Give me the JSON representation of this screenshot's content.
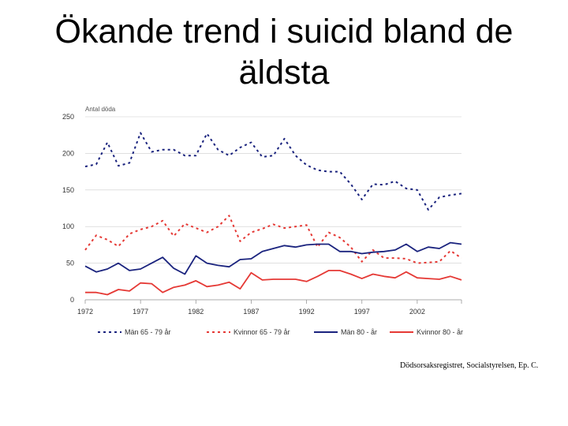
{
  "slide": {
    "title": "Ökande trend i suicid bland de äldsta",
    "source": "Dödsorsaksregistret, Socialstyrelsen, Ep. C."
  },
  "chart_data": {
    "type": "line",
    "ylabel": "Antal döda",
    "ylim": [
      0,
      250
    ],
    "yticks": [
      0,
      50,
      100,
      150,
      200,
      250
    ],
    "xlim": [
      1972,
      2006
    ],
    "xticks": [
      1972,
      1977,
      1982,
      1987,
      1992,
      1997,
      2002
    ],
    "legend_position": "bottom",
    "grid": true,
    "series": [
      {
        "name": "Män 65 - 79 år",
        "color": "#1a237e",
        "style": "dotted",
        "x": [
          1972,
          1973,
          1974,
          1975,
          1976,
          1977,
          1978,
          1979,
          1980,
          1981,
          1982,
          1983,
          1984,
          1985,
          1986,
          1987,
          1988,
          1989,
          1990,
          1991,
          1992,
          1993,
          1994,
          1995,
          1996,
          1997,
          1998,
          1999,
          2000,
          2001,
          2002,
          2003,
          2004,
          2005,
          2006
        ],
        "values": [
          182,
          185,
          215,
          183,
          187,
          228,
          202,
          205,
          205,
          197,
          197,
          227,
          205,
          197,
          208,
          215,
          195,
          197,
          220,
          197,
          184,
          177,
          175,
          175,
          158,
          137,
          158,
          157,
          162,
          152,
          150,
          123,
          140,
          143,
          145
        ]
      },
      {
        "name": "Kvinnor 65 - 79 år",
        "color": "#e53935",
        "style": "dotted",
        "x": [
          1972,
          1973,
          1974,
          1975,
          1976,
          1977,
          1978,
          1979,
          1980,
          1981,
          1982,
          1983,
          1984,
          1985,
          1986,
          1987,
          1988,
          1989,
          1990,
          1991,
          1992,
          1993,
          1994,
          1995,
          1996,
          1997,
          1998,
          1999,
          2000,
          2001,
          2002,
          2003,
          2004,
          2005,
          2006
        ],
        "values": [
          68,
          88,
          82,
          73,
          90,
          96,
          100,
          108,
          87,
          104,
          98,
          92,
          100,
          115,
          80,
          92,
          97,
          103,
          98,
          100,
          102,
          72,
          92,
          85,
          72,
          52,
          68,
          57,
          57,
          56,
          50,
          51,
          52,
          67,
          57
        ]
      },
      {
        "name": "Män 80 - år",
        "color": "#1a237e",
        "style": "solid",
        "x": [
          1972,
          1973,
          1974,
          1975,
          1976,
          1977,
          1978,
          1979,
          1980,
          1981,
          1982,
          1983,
          1984,
          1985,
          1986,
          1987,
          1988,
          1989,
          1990,
          1991,
          1992,
          1993,
          1994,
          1995,
          1996,
          1997,
          1998,
          1999,
          2000,
          2001,
          2002,
          2003,
          2004,
          2005,
          2006
        ],
        "values": [
          46,
          38,
          42,
          50,
          40,
          42,
          50,
          58,
          43,
          35,
          60,
          50,
          47,
          45,
          55,
          56,
          66,
          70,
          74,
          72,
          75,
          76,
          76,
          66,
          66,
          63,
          65,
          66,
          68,
          76,
          66,
          72,
          70,
          78,
          76
        ]
      },
      {
        "name": "Kvinnor 80 - år",
        "color": "#e53935",
        "style": "solid",
        "x": [
          1972,
          1973,
          1974,
          1975,
          1976,
          1977,
          1978,
          1979,
          1980,
          1981,
          1982,
          1983,
          1984,
          1985,
          1986,
          1987,
          1988,
          1989,
          1990,
          1991,
          1992,
          1993,
          1994,
          1995,
          1996,
          1997,
          1998,
          1999,
          2000,
          2001,
          2002,
          2003,
          2004,
          2005,
          2006
        ],
        "values": [
          10,
          10,
          7,
          14,
          12,
          23,
          22,
          10,
          17,
          20,
          26,
          18,
          20,
          24,
          15,
          37,
          27,
          28,
          28,
          28,
          25,
          32,
          40,
          40,
          35,
          29,
          35,
          32,
          30,
          38,
          30,
          29,
          28,
          32,
          27
        ]
      }
    ]
  }
}
